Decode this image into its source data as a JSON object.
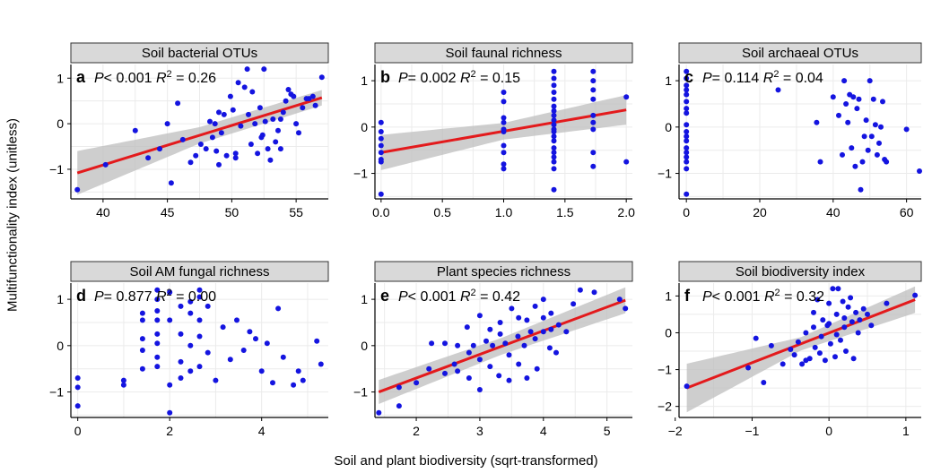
{
  "figure": {
    "ylabel": "Multifunctionality index (unitless)",
    "xlabel": "Soil and plant biodiversity (sqrt-transformed)",
    "colors": {
      "point": "#1414e0",
      "line": "#e31a1c",
      "band": "#bdbdbd",
      "strip": "#d9d9d9",
      "grid": "#ebebeb"
    }
  },
  "chart_data": [
    {
      "panel": "a",
      "type": "scatter",
      "title": "Soil bacterial OTUs",
      "stat_p": "P< 0.001",
      "stat_r2": "0.26",
      "xlim": [
        37.5,
        57.5
      ],
      "ylim": [
        -1.65,
        1.3
      ],
      "xticks": [
        40,
        45,
        50,
        55
      ],
      "yticks": [
        -1,
        0,
        1
      ],
      "fit": {
        "x": [
          38,
          57
        ],
        "y": [
          -1.08,
          0.57
        ]
      },
      "band": [
        0.42,
        0.11
      ],
      "x": [
        38,
        40.2,
        42.5,
        43.5,
        44.4,
        45.0,
        45.3,
        45.8,
        46.2,
        46.8,
        47.2,
        47.6,
        48.0,
        48.3,
        48.5,
        48.8,
        49.0,
        49.2,
        49.4,
        49.6,
        49.9,
        50.1,
        50.3,
        50.5,
        50.7,
        51.0,
        51.2,
        51.5,
        51.6,
        51.8,
        52.0,
        52.2,
        52.4,
        52.5,
        52.6,
        52.8,
        53.0,
        53.2,
        53.4,
        53.6,
        53.8,
        54.0,
        54.2,
        54.4,
        54.6,
        54.8,
        55.0,
        55.2,
        55.5,
        55.8,
        56.0,
        56.3,
        56.5,
        57.0,
        49.0,
        50.3,
        51.3,
        52.3,
        53.8,
        48.7
      ],
      "y": [
        -1.45,
        -0.9,
        -0.15,
        -0.75,
        -0.55,
        0.0,
        -1.3,
        0.45,
        -0.35,
        -0.85,
        -0.7,
        -0.45,
        -0.55,
        0.05,
        -0.3,
        -0.6,
        -0.9,
        -0.2,
        0.2,
        -0.7,
        0.6,
        0.3,
        -0.75,
        0.9,
        -0.05,
        0.8,
        1.2,
        -0.45,
        0.7,
        0.0,
        -0.65,
        0.35,
        -0.25,
        1.2,
        0.05,
        -0.55,
        -0.8,
        0.1,
        -0.4,
        -0.15,
        -0.55,
        0.25,
        0.5,
        0.75,
        0.65,
        0.6,
        0.0,
        -0.2,
        0.35,
        0.55,
        0.55,
        0.6,
        0.4,
        1.02,
        0.25,
        -0.65,
        0.2,
        -0.3,
        0.1,
        0.0
      ]
    },
    {
      "panel": "b",
      "type": "scatter",
      "title": "Soil faunal richness",
      "stat_p": "P= 0.002",
      "stat_r2": "0.15",
      "xlim": [
        -0.05,
        2.05
      ],
      "ylim": [
        -1.55,
        1.35
      ],
      "xticks": [
        0.0,
        0.5,
        1.0,
        1.5,
        2.0
      ],
      "yticks": [
        -1,
        0,
        1
      ],
      "fit": {
        "x": [
          0,
          2
        ],
        "y": [
          -0.55,
          0.37
        ]
      },
      "band": [
        0.32,
        0.26
      ],
      "x": [
        0,
        0,
        0,
        0,
        0,
        0,
        0,
        0,
        1.0,
        1.0,
        1.0,
        1.0,
        1.0,
        1.0,
        1.0,
        1.0,
        1.0,
        1.0,
        1.41,
        1.41,
        1.41,
        1.41,
        1.41,
        1.41,
        1.41,
        1.41,
        1.41,
        1.41,
        1.41,
        1.41,
        1.41,
        1.41,
        1.41,
        1.41,
        1.41,
        1.41,
        1.41,
        1.41,
        1.73,
        1.73,
        1.73,
        1.73,
        1.73,
        1.73,
        1.73,
        1.73,
        1.73,
        2.0,
        2.0
      ],
      "y": [
        0.1,
        -0.1,
        -0.25,
        -0.4,
        -0.55,
        -0.7,
        -0.75,
        -1.45,
        0.75,
        0.55,
        0.2,
        0.1,
        -0.05,
        -0.1,
        -0.4,
        -0.55,
        -0.8,
        -0.9,
        1.2,
        1.05,
        0.9,
        0.75,
        0.6,
        0.45,
        0.35,
        0.25,
        0.15,
        0.05,
        -0.05,
        -0.1,
        -0.2,
        -0.3,
        -0.45,
        -0.55,
        -0.65,
        -0.75,
        -0.9,
        -1.35,
        1.2,
        1.0,
        0.8,
        0.6,
        0.25,
        0.1,
        -0.05,
        -0.55,
        -0.85,
        0.65,
        -0.75
      ]
    },
    {
      "panel": "c",
      "type": "scatter",
      "title": "Soil archaeal OTUs",
      "stat_p": "P= 0.114",
      "stat_r2": "0.04",
      "xlim": [
        -2,
        64
      ],
      "ylim": [
        -1.55,
        1.35
      ],
      "xticks": [
        0,
        20,
        40,
        60
      ],
      "yticks": [
        -1,
        0,
        1
      ],
      "fit": null,
      "band": null,
      "x": [
        0,
        0,
        0,
        0,
        0,
        0,
        0,
        0,
        0,
        0,
        0,
        0,
        0,
        0,
        0,
        0,
        0,
        0,
        25,
        35.5,
        36.5,
        40,
        41.5,
        42.5,
        43,
        43.5,
        44,
        44.5,
        45,
        45.5,
        46,
        46.5,
        47,
        47.5,
        48,
        48.5,
        49,
        49.5,
        50,
        50.5,
        51,
        51.5,
        52,
        52.5,
        53,
        53.5,
        54,
        54.5,
        60,
        63.5
      ],
      "y": [
        1.2,
        1.05,
        0.9,
        0.8,
        0.7,
        0.55,
        0.4,
        0.3,
        0.05,
        -0.1,
        -0.2,
        -0.3,
        -0.45,
        -0.55,
        -0.65,
        -0.75,
        -0.9,
        -1.45,
        0.8,
        0.1,
        -0.75,
        0.65,
        0.25,
        -0.6,
        1.0,
        0.5,
        0.1,
        0.7,
        -0.45,
        0.65,
        -0.85,
        0.4,
        0.6,
        -1.35,
        -0.75,
        -0.2,
        0.15,
        -0.5,
        1.0,
        -0.2,
        0.6,
        0.05,
        -0.6,
        -0.35,
        0.0,
        0.55,
        -0.7,
        -0.75,
        -0.05,
        -0.95
      ]
    },
    {
      "panel": "d",
      "type": "scatter",
      "title": "Soil AM fungal richness",
      "stat_p": "P= 0.877",
      "stat_r2": "0.00",
      "xlim": [
        -0.15,
        5.45
      ],
      "ylim": [
        -1.55,
        1.35
      ],
      "xticks": [
        0,
        2,
        4
      ],
      "yticks": [
        -1,
        0,
        1
      ],
      "fit": null,
      "band": null,
      "x": [
        0,
        0,
        0,
        1.0,
        1.0,
        1.41,
        1.41,
        1.41,
        1.41,
        1.41,
        1.73,
        1.73,
        1.73,
        1.73,
        1.73,
        1.73,
        1.73,
        1.73,
        2.0,
        2.0,
        2.0,
        2.0,
        2.24,
        2.24,
        2.24,
        2.24,
        2.45,
        2.45,
        2.45,
        2.45,
        2.65,
        2.65,
        2.65,
        2.65,
        2.65,
        2.83,
        2.83,
        3.0,
        3.16,
        3.32,
        3.46,
        3.61,
        3.74,
        3.87,
        4.0,
        4.12,
        4.24,
        4.36,
        4.47,
        4.69,
        4.8,
        4.9,
        5.2,
        5.29
      ],
      "y": [
        -0.7,
        -0.9,
        -1.3,
        -0.75,
        -0.85,
        0.7,
        0.55,
        0.15,
        -0.1,
        -0.5,
        1.2,
        1.0,
        0.75,
        0.55,
        0.25,
        0.05,
        -0.25,
        -0.45,
        1.15,
        0.55,
        -0.85,
        -1.45,
        0.85,
        0.25,
        -0.35,
        -0.7,
        0.95,
        0.7,
        0.0,
        -0.55,
        1.2,
        1.05,
        0.55,
        0.2,
        -0.45,
        0.85,
        -0.15,
        -0.75,
        0.4,
        -0.3,
        0.55,
        -0.1,
        0.3,
        0.15,
        -0.55,
        0.05,
        -0.8,
        0.8,
        -0.25,
        -0.85,
        -0.55,
        -0.75,
        0.1,
        -0.4
      ]
    },
    {
      "panel": "e",
      "type": "scatter",
      "title": "Plant species richness",
      "stat_p": "P< 0.001",
      "stat_r2": "0.42",
      "xlim": [
        1.35,
        5.4
      ],
      "ylim": [
        -1.55,
        1.35
      ],
      "xticks": [
        2,
        3,
        4,
        5
      ],
      "yticks": [
        -1,
        0,
        1
      ],
      "fit": {
        "x": [
          1.41,
          5.29
        ],
        "y": [
          -1.0,
          0.98
        ]
      },
      "band": [
        0.2,
        0.22
      ],
      "x": [
        1.41,
        1.73,
        1.73,
        2.0,
        2.2,
        2.24,
        2.45,
        2.45,
        2.6,
        2.65,
        2.65,
        2.8,
        2.83,
        2.83,
        2.9,
        3.0,
        3.0,
        3.0,
        3.1,
        3.16,
        3.16,
        3.2,
        3.3,
        3.32,
        3.32,
        3.4,
        3.46,
        3.46,
        3.5,
        3.6,
        3.61,
        3.61,
        3.7,
        3.74,
        3.74,
        3.8,
        3.87,
        3.87,
        3.9,
        4.0,
        4.0,
        4.0,
        4.1,
        4.12,
        4.12,
        4.2,
        4.24,
        4.36,
        4.47,
        4.58,
        4.8,
        5.2,
        5.29
      ],
      "y": [
        -1.45,
        -0.9,
        -1.3,
        -0.8,
        -0.5,
        0.05,
        0.05,
        -0.6,
        -0.4,
        0.0,
        -0.55,
        0.4,
        -0.15,
        -0.7,
        0.0,
        -0.95,
        -0.3,
        0.65,
        0.1,
        0.35,
        -0.45,
        0.0,
        -0.65,
        0.25,
        0.5,
        0.05,
        -0.2,
        -0.75,
        0.8,
        0.2,
        0.6,
        -0.4,
        0.0,
        0.55,
        -0.7,
        0.3,
        0.15,
        0.85,
        -0.5,
        0.3,
        0.6,
        1.0,
        -0.05,
        0.35,
        0.7,
        -0.15,
        0.45,
        0.3,
        0.9,
        1.2,
        1.15,
        1.0,
        0.8
      ]
    },
    {
      "panel": "f",
      "type": "scatter",
      "title": "Soil biodiversity index",
      "stat_p": "P< 0.001",
      "stat_r2": "0.32",
      "xlim": [
        -1.95,
        1.2
      ],
      "ylim": [
        -2.3,
        1.35
      ],
      "xticks": [
        -2,
        -1,
        0,
        1
      ],
      "yticks": [
        -2,
        -1,
        0,
        1
      ],
      "fit": {
        "x": [
          -1.85,
          1.12
        ],
        "y": [
          -1.5,
          0.9
        ]
      },
      "band": [
        0.6,
        0.3
      ],
      "x": [
        -1.85,
        -1.05,
        -0.95,
        -0.85,
        -0.75,
        -0.6,
        -0.5,
        -0.45,
        -0.4,
        -0.35,
        -0.3,
        -0.25,
        -0.2,
        -0.18,
        -0.15,
        -0.12,
        -0.1,
        -0.08,
        -0.05,
        -0.02,
        0.0,
        0.02,
        0.05,
        0.08,
        0.1,
        0.12,
        0.15,
        0.18,
        0.2,
        0.22,
        0.25,
        0.28,
        0.3,
        0.32,
        0.35,
        0.38,
        0.4,
        0.45,
        0.5,
        0.55,
        0.75,
        1.12,
        -0.2,
        0.0,
        0.2,
        -0.3,
        0.1
      ],
      "y": [
        -1.45,
        -0.95,
        -0.15,
        -1.35,
        -0.35,
        -0.85,
        -0.45,
        -0.6,
        -0.25,
        -0.85,
        0.0,
        -0.7,
        0.55,
        -0.4,
        0.9,
        -0.55,
        -0.1,
        0.35,
        -0.75,
        0.2,
        0.8,
        -0.3,
        1.2,
        -0.65,
        0.5,
        1.2,
        -0.2,
        0.85,
        0.15,
        -0.5,
        0.7,
        0.95,
        0.3,
        -0.7,
        0.55,
        0.0,
        0.35,
        0.65,
        0.5,
        0.2,
        0.8,
        1.02,
        0.15,
        0.25,
        0.4,
        -0.75,
        -0.05
      ]
    }
  ]
}
